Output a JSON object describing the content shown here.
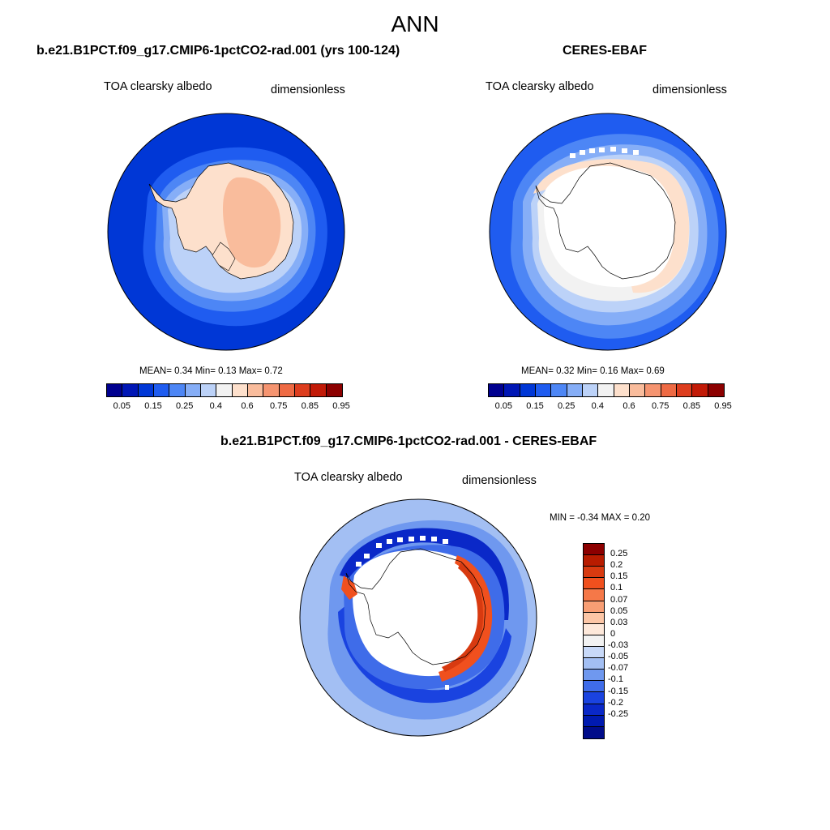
{
  "figure": {
    "title": "ANN"
  },
  "panels": [
    {
      "id": "model",
      "title": "b.e21.B1PCT.f09_g17.CMIP6-1pctCO2-rad.001 (yrs 100-124)",
      "left_label": "TOA clearsky albedo",
      "right_label": "dimensionless",
      "stats": "MEAN=   0.34  Min=    0.13  Max=    0.72",
      "colorbar_ticks": [
        "0.05",
        "0.15",
        "0.25",
        "0.4",
        "0.6",
        "0.75",
        "0.85",
        "0.95"
      ]
    },
    {
      "id": "obs",
      "title": "CERES-EBAF",
      "left_label": "TOA clearsky albedo",
      "right_label": "dimensionless",
      "stats": "MEAN=   0.32  Min=    0.16  Max=    0.69",
      "colorbar_ticks": [
        "0.05",
        "0.15",
        "0.25",
        "0.4",
        "0.6",
        "0.75",
        "0.85",
        "0.95"
      ]
    },
    {
      "id": "diff",
      "title": "b.e21.B1PCT.f09_g17.CMIP6-1pctCO2-rad.001 - CERES-EBAF",
      "left_label": "TOA clearsky albedo",
      "right_label": "dimensionless",
      "stats": "MIN =  -0.34 MAX =   0.20",
      "colorbar_ticks": [
        "0.25",
        "0.2",
        "0.15",
        "0.1",
        "0.07",
        "0.05",
        "0.03",
        "0",
        "-0.03",
        "-0.05",
        "-0.07",
        "-0.1",
        "-0.15",
        "-0.2",
        "-0.25"
      ]
    }
  ],
  "colors": {
    "albedo_palette": [
      "#00008f",
      "#0016b5",
      "#0037d6",
      "#1f5cf0",
      "#4d86f5",
      "#86aef7",
      "#bcd2f8",
      "#f2f2f2",
      "#fde0cc",
      "#f9bc9c",
      "#f59470",
      "#ee6a44",
      "#dd3d1e",
      "#c21a07",
      "#8c0000"
    ],
    "diff_palette": [
      "#8c0000",
      "#b81c00",
      "#d83a10",
      "#f0501e",
      "#f57848",
      "#f89e74",
      "#fcc6a6",
      "#fde8da",
      "#f2f2f2",
      "#c8d9f8",
      "#a3bff3",
      "#6f98ef",
      "#3f6ce9",
      "#1a43e0",
      "#0a28c8",
      "#001ab0",
      "#000c8a"
    ]
  }
}
